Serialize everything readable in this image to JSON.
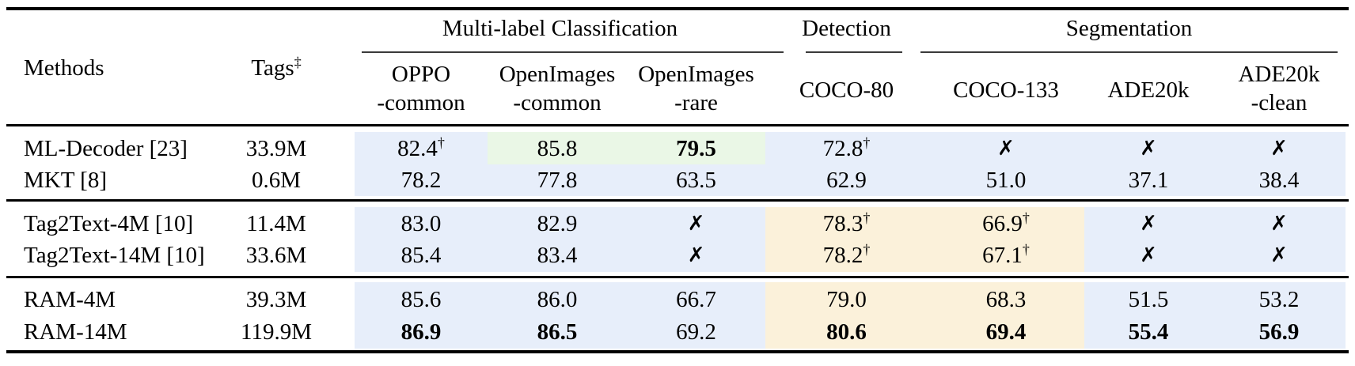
{
  "colors": {
    "blue": "#e7eefa",
    "green": "#eaf7e6",
    "orange": "#fbf1da"
  },
  "header": {
    "methods": "Methods",
    "tags": "Tags",
    "tags_sup": "‡",
    "groups": {
      "classification": "Multi-label Classification",
      "detection": "Detection",
      "segmentation": "Segmentation"
    },
    "columns": {
      "oppo_l1": "OPPO",
      "oppo_l2": "-common",
      "oi_common_l1": "OpenImages",
      "oi_common_l2": "-common",
      "oi_rare_l1": "OpenImages",
      "oi_rare_l2": "-rare",
      "coco80": "COCO-80",
      "coco133": "COCO-133",
      "ade20k": "ADE20k",
      "ade20k_clean_l1": "ADE20k",
      "ade20k_clean_l2": "-clean"
    }
  },
  "rows": [
    {
      "method": "ML-Decoder [23]",
      "tags": "33.9M",
      "cells": [
        {
          "v": "82.4",
          "sup": "†"
        },
        {
          "v": "85.8"
        },
        {
          "v": "79.5",
          "cls": "bold"
        },
        {
          "v": "72.8",
          "sup": "†"
        },
        {
          "v": "✗",
          "cls": "cross"
        },
        {
          "v": "✗",
          "cls": "cross"
        },
        {
          "v": "✗",
          "cls": "cross"
        }
      ]
    },
    {
      "method": "MKT [8]",
      "tags": "0.6M",
      "cells": [
        {
          "v": "78.2"
        },
        {
          "v": "77.8"
        },
        {
          "v": "63.5"
        },
        {
          "v": "62.9"
        },
        {
          "v": "51.0"
        },
        {
          "v": "37.1"
        },
        {
          "v": "38.4"
        }
      ]
    },
    {
      "method": "Tag2Text-4M [10]",
      "tags": "11.4M",
      "cells": [
        {
          "v": "83.0"
        },
        {
          "v": "82.9"
        },
        {
          "v": "✗",
          "cls": "cross"
        },
        {
          "v": "78.3",
          "sup": "†"
        },
        {
          "v": "66.9",
          "sup": "†"
        },
        {
          "v": "✗",
          "cls": "cross"
        },
        {
          "v": "✗",
          "cls": "cross"
        }
      ]
    },
    {
      "method": "Tag2Text-14M [10]",
      "tags": "33.6M",
      "cells": [
        {
          "v": "85.4"
        },
        {
          "v": "83.4"
        },
        {
          "v": "✗",
          "cls": "cross"
        },
        {
          "v": "78.2",
          "sup": "†"
        },
        {
          "v": "67.1",
          "sup": "†"
        },
        {
          "v": "✗",
          "cls": "cross"
        },
        {
          "v": "✗",
          "cls": "cross"
        }
      ]
    },
    {
      "method": "RAM-4M",
      "tags": "39.3M",
      "cells": [
        {
          "v": "85.6"
        },
        {
          "v": "86.0"
        },
        {
          "v": "66.7"
        },
        {
          "v": "79.0"
        },
        {
          "v": "68.3"
        },
        {
          "v": "51.5"
        },
        {
          "v": "53.2"
        }
      ]
    },
    {
      "method": "RAM-14M",
      "tags": "119.9M",
      "cells": [
        {
          "v": "86.9",
          "cls": "bold"
        },
        {
          "v": "86.5",
          "cls": "bold"
        },
        {
          "v": "69.2"
        },
        {
          "v": "80.6",
          "cls": "bold"
        },
        {
          "v": "69.4",
          "cls": "bold"
        },
        {
          "v": "55.4",
          "cls": "bold"
        },
        {
          "v": "56.9",
          "cls": "bold"
        }
      ]
    }
  ]
}
